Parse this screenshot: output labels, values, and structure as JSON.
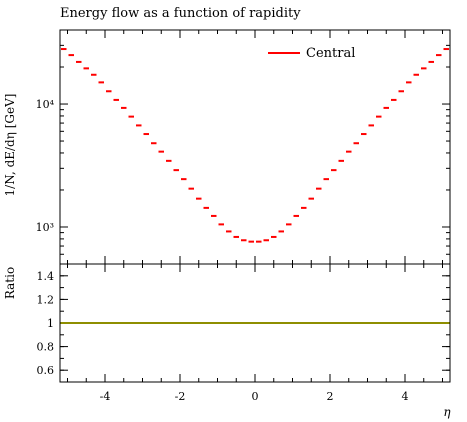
{
  "chart_data": [
    {
      "type": "line",
      "title": "Energy flow as a function of rapidity",
      "ylabel": "1/N, dE/dη [GeV]",
      "y_scale": "log",
      "ylim": [
        500,
        40000
      ],
      "xlim": [
        -5.2,
        5.2
      ],
      "y_ticks": [
        {
          "value": 1000,
          "label": "10³"
        },
        {
          "value": 10000,
          "label": "10⁴"
        }
      ],
      "legend_position": "top-right",
      "series": [
        {
          "name": "Central",
          "color": "#ff0000",
          "style": "horizontal-bin-segments",
          "bins": [
            [
              -5.2,
              -5.0
            ],
            [
              -5.0,
              -4.8
            ],
            [
              -4.8,
              -4.6
            ],
            [
              -4.6,
              -4.4
            ],
            [
              -4.4,
              -4.2
            ],
            [
              -4.2,
              -4.0
            ],
            [
              -4.0,
              -3.8
            ],
            [
              -3.8,
              -3.6
            ],
            [
              -3.6,
              -3.4
            ],
            [
              -3.4,
              -3.2
            ],
            [
              -3.2,
              -3.0
            ],
            [
              -3.0,
              -2.8
            ],
            [
              -2.8,
              -2.6
            ],
            [
              -2.6,
              -2.4
            ],
            [
              -2.4,
              -2.2
            ],
            [
              -2.2,
              -2.0
            ],
            [
              -2.0,
              -1.8
            ],
            [
              -1.8,
              -1.6
            ],
            [
              -1.6,
              -1.4
            ],
            [
              -1.4,
              -1.2
            ],
            [
              -1.2,
              -1.0
            ],
            [
              -1.0,
              -0.8
            ],
            [
              -0.8,
              -0.6
            ],
            [
              -0.6,
              -0.4
            ],
            [
              -0.4,
              -0.2
            ],
            [
              -0.2,
              0.0
            ],
            [
              0.0,
              0.2
            ],
            [
              0.2,
              0.4
            ],
            [
              0.4,
              0.6
            ],
            [
              0.6,
              0.8
            ],
            [
              0.8,
              1.0
            ],
            [
              1.0,
              1.2
            ],
            [
              1.2,
              1.4
            ],
            [
              1.4,
              1.6
            ],
            [
              1.6,
              1.8
            ],
            [
              1.8,
              2.0
            ],
            [
              2.0,
              2.2
            ],
            [
              2.2,
              2.4
            ],
            [
              2.4,
              2.6
            ],
            [
              2.6,
              2.8
            ],
            [
              2.8,
              3.0
            ],
            [
              3.0,
              3.2
            ],
            [
              3.2,
              3.4
            ],
            [
              3.4,
              3.6
            ],
            [
              3.6,
              3.8
            ],
            [
              3.8,
              4.0
            ],
            [
              4.0,
              4.2
            ],
            [
              4.2,
              4.4
            ],
            [
              4.4,
              4.6
            ],
            [
              4.6,
              4.8
            ],
            [
              4.8,
              5.0
            ],
            [
              5.0,
              5.2
            ]
          ],
          "values": [
            28000,
            25000,
            22000,
            19500,
            17300,
            15000,
            12700,
            10800,
            9300,
            7900,
            6700,
            5700,
            4800,
            4100,
            3450,
            2900,
            2450,
            2050,
            1700,
            1430,
            1230,
            1050,
            920,
            830,
            780,
            760,
            760,
            780,
            830,
            920,
            1050,
            1230,
            1430,
            1700,
            2050,
            2450,
            2900,
            3450,
            4100,
            4800,
            5700,
            6700,
            7900,
            9300,
            10800,
            12700,
            15000,
            17300,
            19500,
            22000,
            25000,
            28000
          ]
        }
      ]
    },
    {
      "type": "line",
      "ylabel": "Ratio",
      "xlabel": "η",
      "xlim": [
        -5.2,
        5.2
      ],
      "ylim": [
        0.5,
        1.5
      ],
      "x_ticks": [
        {
          "value": -4,
          "label": "-4"
        },
        {
          "value": -2,
          "label": "-2"
        },
        {
          "value": 0,
          "label": "0"
        },
        {
          "value": 2,
          "label": "2"
        },
        {
          "value": 4,
          "label": "4"
        }
      ],
      "y_ticks": [
        {
          "value": 0.6,
          "label": "0.6"
        },
        {
          "value": 0.8,
          "label": "0.8"
        },
        {
          "value": 1.0,
          "label": "1"
        },
        {
          "value": 1.2,
          "label": "1.2"
        },
        {
          "value": 1.4,
          "label": "1.4"
        }
      ],
      "band": {
        "color": "#ffff00",
        "low": 0.995,
        "high": 1.005
      },
      "series": [
        {
          "color": "#8e8e00",
          "x": [
            -5.2,
            5.2
          ],
          "values": [
            1.0,
            1.0
          ]
        }
      ]
    }
  ]
}
